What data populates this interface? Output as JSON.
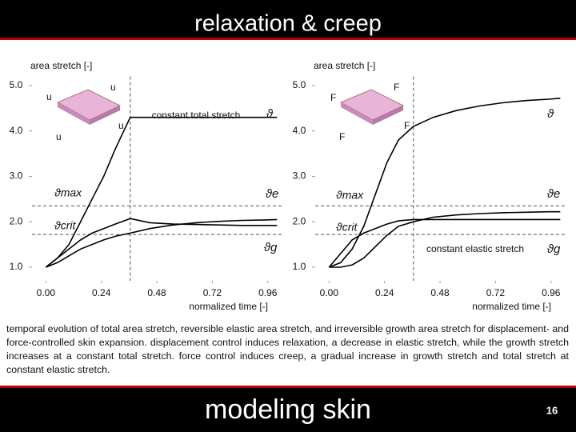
{
  "slide": {
    "title": "relaxation & creep",
    "caption": "temporal evolution of total area stretch, reversible elastic area stretch, and irreversible growth area stretch for displacement- and force-controlled skin expansion. displacement control induces relaxation, a decrease in elastic stretch, while the growth stretch increases at a constant total stretch. force control induces creep, a gradual increase in growth stretch and total stretch at constant elastic stretch.",
    "footer": "modeling skin",
    "page": "16"
  },
  "chart_data": [
    {
      "type": "line",
      "y_label": "area stretch [-]",
      "x_label": "normalized time [-]",
      "x": [
        0,
        0.05,
        0.1,
        0.15,
        0.2,
        0.25,
        0.3,
        0.365,
        0.45,
        0.55,
        0.65,
        0.75,
        0.85,
        0.95,
        1.0
      ],
      "series": [
        {
          "name": "ϑ",
          "color": "#000000",
          "values": [
            1.0,
            1.2,
            1.5,
            2.0,
            2.5,
            3.0,
            3.6,
            4.3,
            4.3,
            4.3,
            4.3,
            4.3,
            4.3,
            4.3,
            4.3
          ]
        },
        {
          "name": "ϑe",
          "color": "#000000",
          "values": [
            1.0,
            1.2,
            1.4,
            1.6,
            1.75,
            1.85,
            1.95,
            2.07,
            1.98,
            1.95,
            1.94,
            1.93,
            1.92,
            1.92,
            1.92
          ]
        },
        {
          "name": "ϑg",
          "color": "#000000",
          "values": [
            1.0,
            1.1,
            1.25,
            1.4,
            1.5,
            1.6,
            1.68,
            1.75,
            1.85,
            1.93,
            1.98,
            2.01,
            2.03,
            2.04,
            2.05
          ]
        }
      ],
      "hlines": [
        2.35,
        1.72
      ],
      "vline": 0.365,
      "annotations": [
        "constant total stretch",
        "ϑmax",
        "ϑcrit",
        "u",
        "u",
        "u",
        "u"
      ],
      "xlim": [
        -0.06,
        1.03
      ],
      "ylim": [
        0.7,
        5.2
      ],
      "xticks": [
        {
          "value": 0,
          "label": "0.00"
        },
        0.24,
        0.48,
        0.72,
        0.96
      ],
      "yticks": [
        {
          "value": 1,
          "label": "1.0"
        },
        {
          "value": 2,
          "label": "2.0"
        },
        {
          "value": 3,
          "label": "3.0"
        },
        {
          "value": 4,
          "label": "4.0"
        },
        {
          "value": 5,
          "label": "5.0"
        }
      ]
    },
    {
      "type": "line",
      "y_label": "area stretch [-]",
      "x_label": "normalized time [-]",
      "x": [
        0,
        0.05,
        0.1,
        0.15,
        0.2,
        0.25,
        0.3,
        0.365,
        0.45,
        0.55,
        0.65,
        0.75,
        0.85,
        0.95,
        1.0
      ],
      "series": [
        {
          "name": "ϑ",
          "color": "#000000",
          "values": [
            1.0,
            1.1,
            1.4,
            1.9,
            2.6,
            3.3,
            3.8,
            4.1,
            4.3,
            4.45,
            4.55,
            4.62,
            4.67,
            4.7,
            4.72
          ]
        },
        {
          "name": "ϑe",
          "color": "#000000",
          "values": [
            1.0,
            1.3,
            1.6,
            1.75,
            1.85,
            1.95,
            2.02,
            2.05,
            2.05,
            2.05,
            2.05,
            2.05,
            2.05,
            2.05,
            2.05
          ]
        },
        {
          "name": "ϑg",
          "color": "#000000",
          "values": [
            1.0,
            1.0,
            1.05,
            1.2,
            1.45,
            1.7,
            1.9,
            2.0,
            2.1,
            2.15,
            2.18,
            2.2,
            2.21,
            2.22,
            2.22
          ]
        }
      ],
      "hlines": [
        2.35,
        1.72
      ],
      "vline": 0.365,
      "annotations": [
        "constant elastic stretch",
        "ϑmax",
        "ϑcrit",
        "F",
        "F",
        "F",
        "F"
      ],
      "xlim": [
        -0.06,
        1.03
      ],
      "ylim": [
        0.7,
        5.2
      ],
      "xticks": [
        {
          "value": 0,
          "label": "0.00"
        },
        0.24,
        0.48,
        0.72,
        0.96
      ],
      "yticks": [
        {
          "value": 1,
          "label": "1.0"
        },
        {
          "value": 2,
          "label": "2.0"
        },
        {
          "value": 3,
          "label": "3.0"
        },
        {
          "value": 4,
          "label": "4.0"
        },
        {
          "value": 5,
          "label": "5.0"
        }
      ]
    }
  ]
}
